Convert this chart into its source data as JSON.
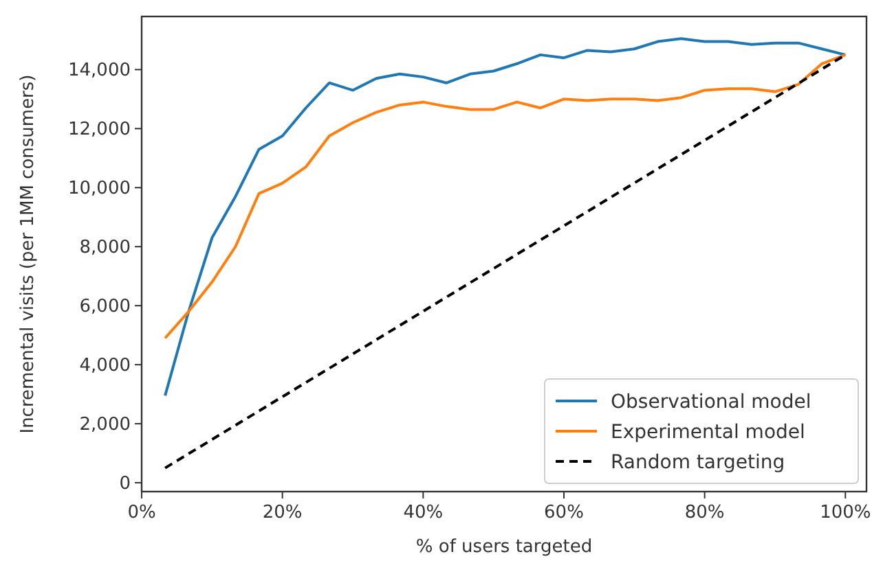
{
  "chart_data": {
    "type": "line",
    "xlabel": "% of users targeted",
    "ylabel": "Incremental visits (per 1MM consumers)",
    "xlim": [
      0,
      103
    ],
    "ylim": [
      -300,
      15800
    ],
    "xticks": [
      {
        "value": 0,
        "label": "0%"
      },
      {
        "value": 20,
        "label": "20%"
      },
      {
        "value": 40,
        "label": "40%"
      },
      {
        "value": 60,
        "label": "60%"
      },
      {
        "value": 80,
        "label": "80%"
      },
      {
        "value": 100,
        "label": "100%"
      }
    ],
    "yticks": [
      {
        "value": 0,
        "label": "0"
      },
      {
        "value": 2000,
        "label": "2,000"
      },
      {
        "value": 4000,
        "label": "4,000"
      },
      {
        "value": 6000,
        "label": "6,000"
      },
      {
        "value": 8000,
        "label": "8,000"
      },
      {
        "value": 10000,
        "label": "10,000"
      },
      {
        "value": 12000,
        "label": "12,000"
      },
      {
        "value": 14000,
        "label": "14,000"
      }
    ],
    "grid": false,
    "legend": "bottom right",
    "series": [
      {
        "name": "Observational model",
        "color": "#1f77b4",
        "line_style": "solid",
        "x": [
          3.33,
          6.67,
          10,
          13.33,
          16.67,
          20,
          23.33,
          26.67,
          30,
          33.33,
          36.67,
          40,
          43.33,
          46.67,
          50,
          53.33,
          56.67,
          60,
          63.33,
          66.67,
          70,
          73.33,
          76.67,
          80,
          83.33,
          86.67,
          90,
          93.33,
          96.67,
          100
        ],
        "values": [
          2950,
          5800,
          8300,
          9700,
          11300,
          11750,
          12700,
          13550,
          13300,
          13700,
          13850,
          13750,
          13550,
          13850,
          13950,
          14200,
          14500,
          14400,
          14650,
          14600,
          14700,
          14950,
          15050,
          14950,
          14950,
          14850,
          14900,
          14900,
          14700,
          14500
        ]
      },
      {
        "name": "Experimental model",
        "color": "#ff7f0e",
        "line_style": "solid",
        "x": [
          3.33,
          6.67,
          10,
          13.33,
          16.67,
          20,
          23.33,
          26.67,
          30,
          33.33,
          36.67,
          40,
          43.33,
          46.67,
          50,
          53.33,
          56.67,
          60,
          63.33,
          66.67,
          70,
          73.33,
          76.67,
          80,
          83.33,
          86.67,
          90,
          93.33,
          96.67,
          100
        ],
        "values": [
          4900,
          5800,
          6800,
          8000,
          9800,
          10150,
          10700,
          11750,
          12200,
          12550,
          12800,
          12900,
          12750,
          12650,
          12650,
          12900,
          12700,
          13000,
          12950,
          13000,
          13000,
          12950,
          13050,
          13300,
          13350,
          13350,
          13250,
          13500,
          14200,
          14500
        ]
      },
      {
        "name": "Random targeting",
        "color": "#000000",
        "line_style": "dashed",
        "x": [
          3.33,
          100
        ],
        "values": [
          500,
          14500
        ]
      }
    ]
  }
}
